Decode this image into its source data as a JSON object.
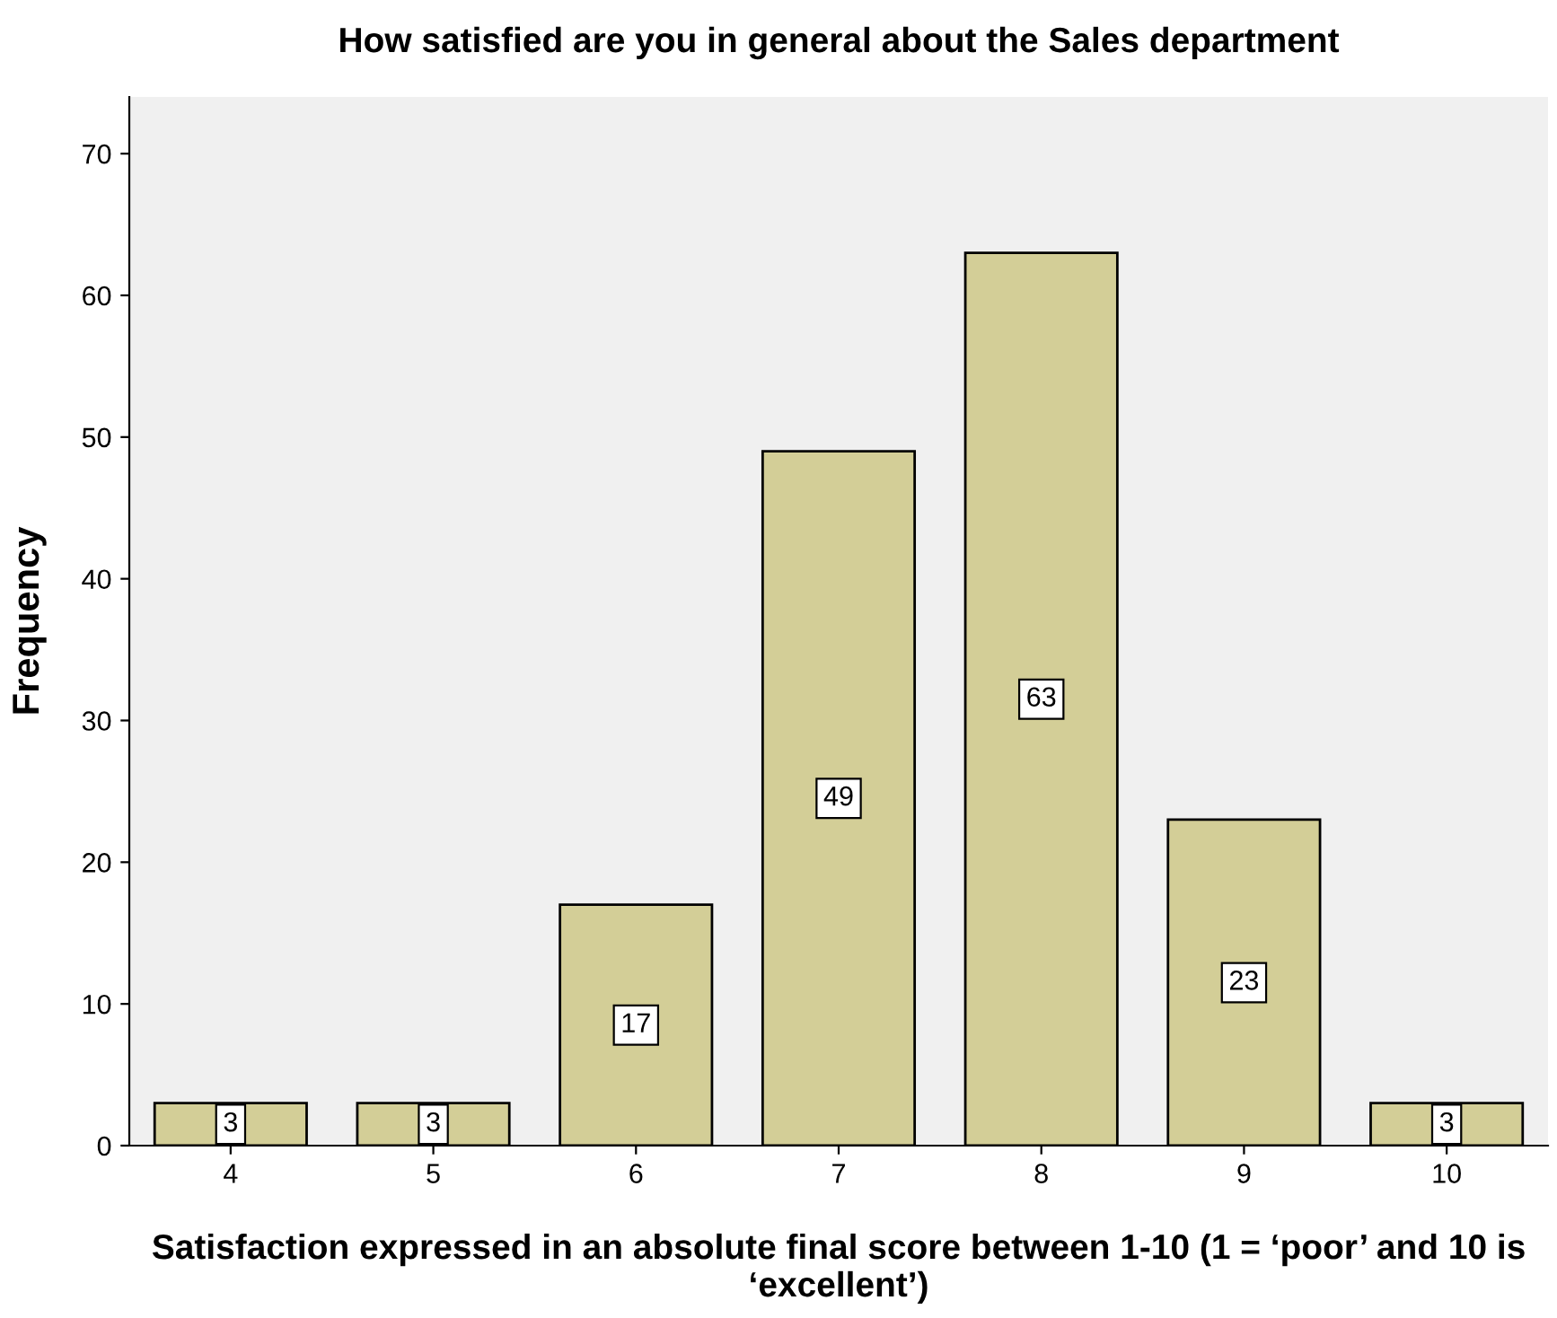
{
  "chart_data": {
    "type": "bar",
    "title": "How satisfied are you in general about the Sales department",
    "xlabel": "Satisfaction expressed in an absolute final score between 1-10 (1 = ‘poor’ and 10 is ‘excellent’)",
    "ylabel": "Frequency",
    "categories": [
      "4",
      "5",
      "6",
      "7",
      "8",
      "9",
      "10"
    ],
    "values": [
      3,
      3,
      17,
      49,
      63,
      23,
      3
    ],
    "color": "#d3ce97",
    "ylim": [
      0,
      74
    ],
    "yticks": [
      0,
      10,
      20,
      30,
      40,
      50,
      60,
      70
    ],
    "data_labels": true,
    "grid": false
  }
}
